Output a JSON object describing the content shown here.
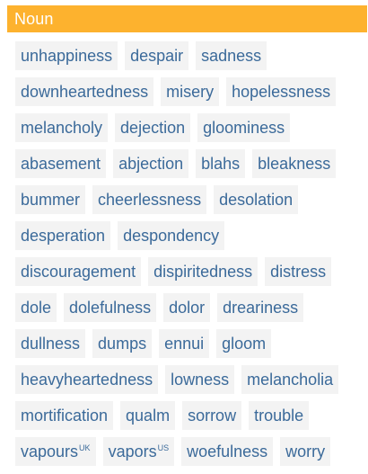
{
  "header": {
    "title": "Noun"
  },
  "colors": {
    "header_bg": "#fdb22e",
    "chip_bg": "#f3f3f3",
    "chip_text": "#3b6a9a"
  },
  "rows": [
    [
      {
        "word": "unhappiness"
      },
      {
        "word": "despair"
      },
      {
        "word": "sadness"
      }
    ],
    [
      {
        "word": "downheartedness"
      },
      {
        "word": "misery"
      },
      {
        "word": "hopelessness"
      }
    ],
    [
      {
        "word": "melancholy"
      },
      {
        "word": "dejection"
      },
      {
        "word": "gloominess"
      }
    ],
    [
      {
        "word": "abasement"
      },
      {
        "word": "abjection"
      },
      {
        "word": "blahs"
      },
      {
        "word": "bleakness"
      }
    ],
    [
      {
        "word": "bummer"
      },
      {
        "word": "cheerlessness"
      },
      {
        "word": "desolation"
      }
    ],
    [
      {
        "word": "desperation"
      },
      {
        "word": "despondency"
      }
    ],
    [
      {
        "word": "discouragement"
      },
      {
        "word": "dispiritedness"
      },
      {
        "word": "distress"
      }
    ],
    [
      {
        "word": "dole"
      },
      {
        "word": "dolefulness"
      },
      {
        "word": "dolor"
      },
      {
        "word": "dreariness"
      }
    ],
    [
      {
        "word": "dullness"
      },
      {
        "word": "dumps"
      },
      {
        "word": "ennui"
      },
      {
        "word": "gloom"
      }
    ],
    [
      {
        "word": "heavyheartedness"
      },
      {
        "word": "lowness"
      },
      {
        "word": "melancholia"
      }
    ],
    [
      {
        "word": "mortification"
      },
      {
        "word": "qualm"
      },
      {
        "word": "sorrow"
      },
      {
        "word": "trouble"
      }
    ],
    [
      {
        "word": "vapours",
        "sup": "UK"
      },
      {
        "word": "vapors",
        "sup": "US"
      },
      {
        "word": "woefulness"
      },
      {
        "word": "worry"
      }
    ]
  ]
}
